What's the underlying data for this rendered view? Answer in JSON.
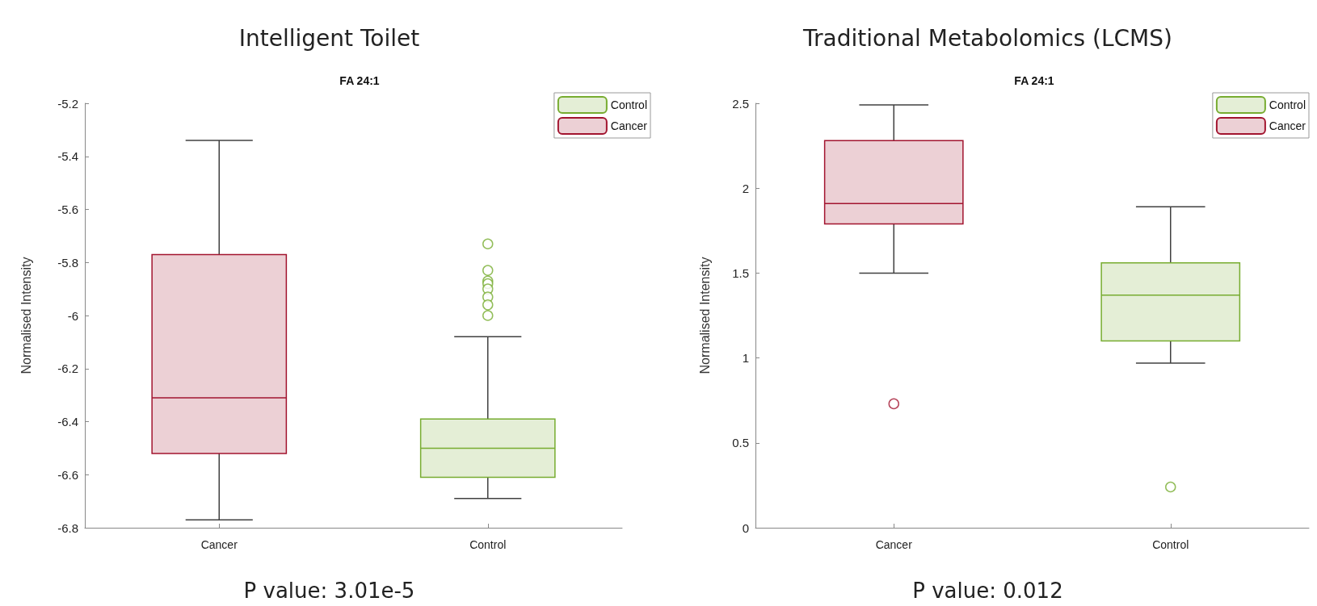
{
  "chart_data": [
    {
      "type": "box",
      "title": "Intelligent Toilet",
      "subtitle": "FA 24:1",
      "ylabel": "Normalised Intensity",
      "categories": [
        "Cancer",
        "Control"
      ],
      "ylim": [
        -6.8,
        -5.2
      ],
      "yticks": [
        -6.8,
        -6.6,
        -6.4,
        -6.2,
        -6,
        -5.8,
        -5.6,
        -5.4,
        -5.2
      ],
      "grid": false,
      "legend": "top right",
      "marker": "circle",
      "annotations": [
        "P value: 3.01e-5"
      ],
      "series": [
        {
          "name": "Control",
          "color": "#77ac30",
          "boxes": [
            null,
            {
              "low": -6.69,
              "q1": -6.61,
              "median": -6.5,
              "q3": -6.39,
              "high": -6.08,
              "outliers": [
                -5.73,
                -5.83,
                -5.87,
                -5.88,
                -5.9,
                -5.93,
                -5.96,
                -6.0
              ]
            }
          ]
        },
        {
          "name": "Cancer",
          "color": "#a2142f",
          "boxes": [
            {
              "low": -6.77,
              "q1": -6.52,
              "median": -6.31,
              "q3": -5.77,
              "high": -5.34
            },
            null
          ]
        }
      ]
    },
    {
      "type": "box",
      "title": "Traditional Metabolomics (LCMS)",
      "subtitle": "FA 24:1",
      "ylabel": "Normalised Intensity",
      "categories": [
        "Cancer",
        "Control"
      ],
      "ylim": [
        0,
        2.5
      ],
      "yticks": [
        0,
        0.5,
        1,
        1.5,
        2,
        2.5
      ],
      "grid": false,
      "legend": "top right",
      "marker": "circle",
      "annotations": [
        "P value: 0.012"
      ],
      "series": [
        {
          "name": "Control",
          "color": "#77ac30",
          "boxes": [
            null,
            {
              "low": 0.97,
              "q1": 1.1,
              "median": 1.37,
              "q3": 1.56,
              "high": 1.89,
              "outliers": [
                0.24
              ]
            }
          ]
        },
        {
          "name": "Cancer",
          "color": "#a2142f",
          "boxes": [
            {
              "low": 1.5,
              "q1": 1.79,
              "median": 1.91,
              "q3": 2.28,
              "high": 2.49,
              "outliers": [
                0.73
              ]
            },
            null
          ]
        }
      ]
    }
  ]
}
